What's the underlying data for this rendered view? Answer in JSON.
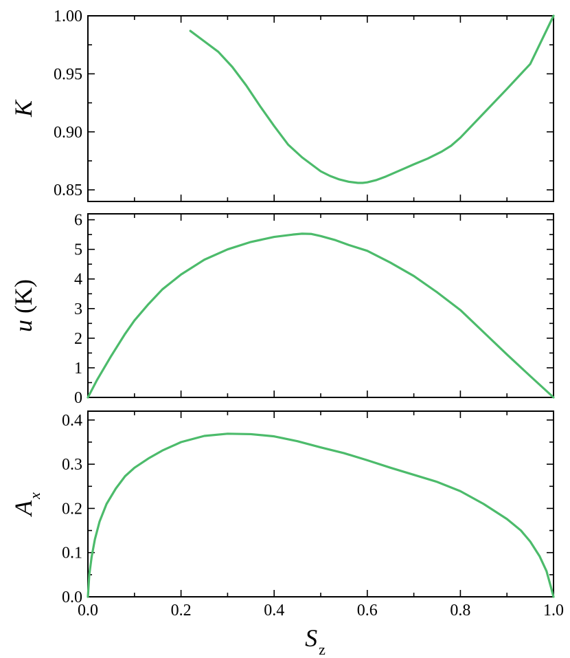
{
  "colors": {
    "series": "#4cbb6b",
    "axes": "#000000"
  },
  "chart_data": [
    {
      "type": "line",
      "ylabel": "K",
      "xlim": [
        0.0,
        1.0
      ],
      "ylim": [
        0.84,
        1.0
      ],
      "yticks": [
        0.85,
        0.9,
        0.95,
        1.0
      ],
      "ytick_labels": [
        "0.85",
        "0.90",
        "0.95",
        "1.00"
      ],
      "show_xtick_labels": false,
      "series": [
        {
          "x": [
            0.22,
            0.25,
            0.28,
            0.31,
            0.34,
            0.37,
            0.4,
            0.43,
            0.46,
            0.48,
            0.5,
            0.52,
            0.54,
            0.56,
            0.58,
            0.59,
            0.6,
            0.62,
            0.64,
            0.66,
            0.68,
            0.7,
            0.73,
            0.76,
            0.78,
            0.8,
            0.85,
            0.9,
            0.95,
            1.0
          ],
          "y": [
            0.987,
            0.978,
            0.969,
            0.956,
            0.94,
            0.922,
            0.905,
            0.889,
            0.878,
            0.872,
            0.866,
            0.862,
            0.859,
            0.857,
            0.856,
            0.856,
            0.8565,
            0.8585,
            0.8615,
            0.865,
            0.8685,
            0.872,
            0.877,
            0.883,
            0.888,
            0.895,
            0.916,
            0.937,
            0.9585,
            1.0
          ]
        }
      ]
    },
    {
      "type": "line",
      "ylabel": "u (K)",
      "xlim": [
        0.0,
        1.0
      ],
      "ylim": [
        0,
        6.2
      ],
      "yticks": [
        0,
        1,
        2,
        3,
        4,
        5,
        6
      ],
      "ytick_labels": [
        "0",
        "1",
        "2",
        "3",
        "4",
        "5",
        "6"
      ],
      "show_xtick_labels": false,
      "series": [
        {
          "x": [
            0.0,
            0.02,
            0.05,
            0.08,
            0.1,
            0.13,
            0.16,
            0.2,
            0.25,
            0.3,
            0.35,
            0.4,
            0.44,
            0.46,
            0.48,
            0.5,
            0.53,
            0.56,
            0.6,
            0.65,
            0.7,
            0.75,
            0.8,
            0.85,
            0.9,
            0.95,
            1.0
          ],
          "y": [
            0.0,
            0.6,
            1.4,
            2.15,
            2.6,
            3.15,
            3.65,
            4.15,
            4.65,
            5.0,
            5.25,
            5.42,
            5.5,
            5.53,
            5.52,
            5.45,
            5.32,
            5.15,
            4.95,
            4.55,
            4.1,
            3.55,
            2.95,
            2.2,
            1.45,
            0.72,
            0.0
          ]
        }
      ]
    },
    {
      "type": "line",
      "ylabel": "A",
      "ylabel_subscript": "x",
      "xlabel": "S",
      "xlabel_subscript": "z",
      "xlim": [
        0.0,
        1.0
      ],
      "ylim": [
        0.0,
        0.42
      ],
      "yticks": [
        0.0,
        0.1,
        0.2,
        0.3,
        0.4
      ],
      "ytick_labels": [
        "0.0",
        "0.1",
        "0.2",
        "0.3",
        "0.4"
      ],
      "xticks": [
        0.0,
        0.2,
        0.4,
        0.6,
        0.8,
        1.0
      ],
      "xtick_labels": [
        "0.0",
        "0.2",
        "0.4",
        "0.6",
        "0.8",
        "1.0"
      ],
      "show_xtick_labels": true,
      "series": [
        {
          "x": [
            0.0,
            0.003,
            0.008,
            0.015,
            0.025,
            0.04,
            0.06,
            0.08,
            0.1,
            0.13,
            0.16,
            0.2,
            0.25,
            0.3,
            0.35,
            0.4,
            0.45,
            0.5,
            0.55,
            0.6,
            0.65,
            0.7,
            0.75,
            0.8,
            0.85,
            0.9,
            0.93,
            0.95,
            0.97,
            0.985,
            0.995,
            1.0
          ],
          "y": [
            0.0,
            0.05,
            0.09,
            0.13,
            0.17,
            0.21,
            0.245,
            0.273,
            0.292,
            0.313,
            0.331,
            0.35,
            0.364,
            0.369,
            0.368,
            0.363,
            0.352,
            0.338,
            0.325,
            0.309,
            0.292,
            0.276,
            0.26,
            0.239,
            0.21,
            0.176,
            0.15,
            0.125,
            0.092,
            0.058,
            0.02,
            0.0
          ]
        }
      ]
    }
  ]
}
